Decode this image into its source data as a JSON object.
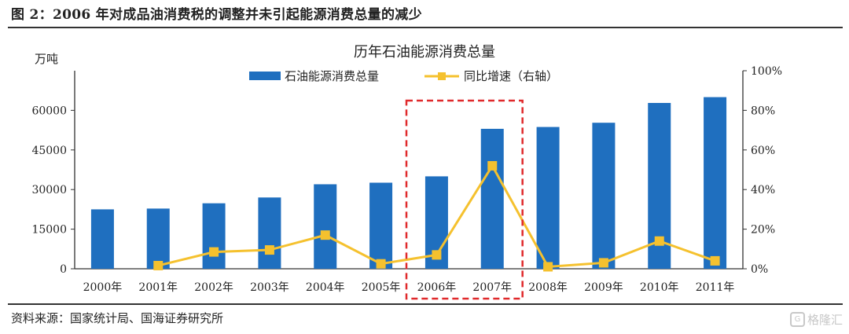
{
  "figure": {
    "title": "图 2：2006 年对成品油消费税的调整并未引起能源消费总量的减少",
    "source": "资料来源：国家统计局、国海证券研究所",
    "watermark": "格隆汇"
  },
  "chart_data": {
    "type": "bar+line",
    "title": "历年石油能源消费总量",
    "ylabel_left": "万吨",
    "categories": [
      "2000年",
      "2001年",
      "2002年",
      "2003年",
      "2004年",
      "2005年",
      "2006年",
      "2007年",
      "2008年",
      "2009年",
      "2010年",
      "2011年"
    ],
    "series": [
      {
        "name": "石油能源消费总量",
        "type": "bar",
        "axis": "left",
        "color": "#1f6fbf",
        "values": [
          22500,
          22800,
          24800,
          27000,
          32000,
          32600,
          35000,
          53000,
          53700,
          55300,
          62800,
          65000
        ]
      },
      {
        "name": "同比增速（右轴）",
        "type": "line",
        "axis": "right",
        "color": "#f5c12e",
        "values": [
          null,
          0.016,
          0.085,
          0.095,
          0.17,
          0.025,
          0.07,
          0.52,
          0.01,
          0.03,
          0.14,
          0.04
        ]
      }
    ],
    "ylim_left": [
      0,
      75000
    ],
    "yticks_left": [
      "0",
      "15000",
      "30000",
      "45000",
      "60000"
    ],
    "ylim_right": [
      0,
      1.0
    ],
    "yticks_right": [
      "0%",
      "20%",
      "40%",
      "60%",
      "80%",
      "100%"
    ],
    "legend_position": "top",
    "grid": false,
    "highlight": {
      "categories": [
        "2006年",
        "2007年"
      ],
      "style": "red dashed box",
      "color": "#e0292b"
    }
  }
}
